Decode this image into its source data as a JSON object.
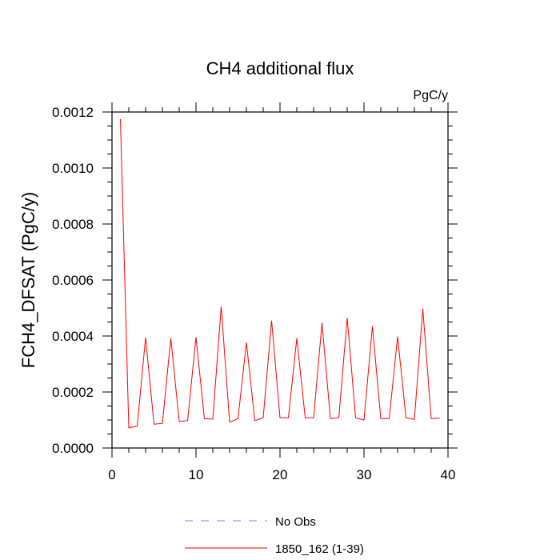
{
  "chart_data": {
    "type": "line",
    "title": "CH4 additional flux",
    "units": "PgC/y",
    "ylabel": "FCH4_DFSAT  (PgC/y)",
    "xlabel": "",
    "xlim": [
      0,
      40
    ],
    "ylim": [
      0,
      0.0012
    ],
    "xticks": [
      0,
      10,
      20,
      30,
      40
    ],
    "xtick_labels": [
      "0",
      "10",
      "20",
      "30",
      "40"
    ],
    "yticks": [
      0,
      0.0002,
      0.0004,
      0.0006,
      0.0008,
      0.001,
      0.0012
    ],
    "ytick_labels": [
      "0.0000",
      "0.0002",
      "0.0004",
      "0.0006",
      "0.0008",
      "0.0010",
      "0.0012"
    ],
    "grid": false,
    "legend_position": "bottom",
    "series": [
      {
        "name": "1850_162 (1-39)",
        "color": "#ff0000",
        "style": "solid",
        "x": [
          1,
          2,
          3,
          4,
          5,
          6,
          7,
          8,
          9,
          10,
          11,
          12,
          13,
          14,
          15,
          16,
          17,
          18,
          19,
          20,
          21,
          22,
          23,
          24,
          25,
          26,
          27,
          28,
          29,
          30,
          31,
          32,
          33,
          34,
          35,
          36,
          37,
          38,
          39
        ],
        "y": [
          0.001175,
          7.2e-05,
          7.8e-05,
          0.000395,
          8.5e-05,
          8.8e-05,
          0.000392,
          9.5e-05,
          9.8e-05,
          0.000396,
          0.000105,
          0.000103,
          0.000505,
          9.2e-05,
          0.000105,
          0.000377,
          9.8e-05,
          0.000108,
          0.000455,
          0.000108,
          0.000108,
          0.000392,
          0.000108,
          0.000108,
          0.000447,
          0.000105,
          0.000108,
          0.000465,
          0.000108,
          0.0001,
          0.000435,
          0.000105,
          0.000105,
          0.000398,
          0.000108,
          0.000102,
          0.000498,
          0.000105,
          0.000107
        ]
      }
    ],
    "legend": [
      {
        "label": "No Obs",
        "color": "#8080ff",
        "style": "dashed"
      },
      {
        "label": "1850_162 (1-39)",
        "color": "#ff0000",
        "style": "solid"
      }
    ]
  }
}
